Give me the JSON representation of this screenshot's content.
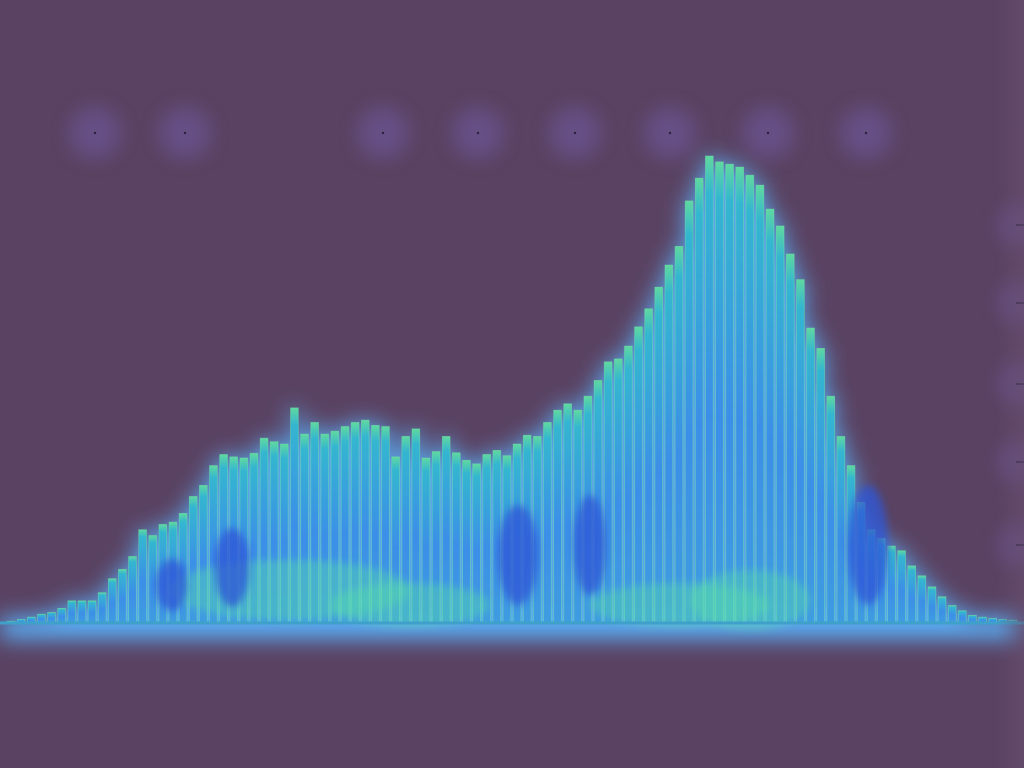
{
  "chart_data": {
    "type": "bar",
    "title": "",
    "xlabel": "",
    "ylabel": "",
    "ylim": [
      0,
      100
    ],
    "grid": false,
    "legend": "none",
    "values": [
      0.3,
      0.6,
      1.0,
      1.5,
      1.8,
      2.5,
      3.8,
      3.8,
      3.8,
      5.2,
      7.6,
      9.2,
      11.4,
      16.0,
      15.0,
      16.9,
      17.3,
      18.8,
      21.7,
      23.6,
      27.0,
      28.9,
      28.5,
      28.3,
      29.1,
      31.7,
      31.1,
      30.7,
      36.9,
      32.4,
      34.4,
      32.4,
      32.9,
      33.7,
      34.4,
      34.8,
      33.9,
      33.7,
      28.5,
      32.0,
      33.3,
      28.3,
      29.4,
      32.0,
      29.2,
      27.9,
      27.3,
      28.9,
      29.6,
      28.7,
      30.7,
      32.2,
      32.0,
      34.4,
      36.5,
      37.6,
      36.5,
      38.9,
      41.6,
      44.8,
      45.3,
      47.5,
      50.8,
      53.9,
      57.6,
      61.4,
      64.6,
      72.4,
      76.3,
      80.1,
      79.1,
      78.7,
      78.2,
      76.8,
      75.1,
      71.0,
      68.1,
      63.3,
      58.9,
      50.6,
      47.1,
      38.9,
      32.0,
      27.0,
      20.7,
      16.0,
      14.5,
      13.2,
      12.4,
      9.8,
      8.1,
      6.2,
      4.5,
      3.0,
      2.1,
      1.3,
      1.0,
      0.8,
      0.6,
      0.5
    ],
    "colors": {
      "background": "#5a4262",
      "bar": "#3f93ea",
      "glow": "#5ab4ff",
      "hot": "#5de6a4",
      "cool": "#2f54d6",
      "baseline": "#3fa1c9"
    }
  }
}
